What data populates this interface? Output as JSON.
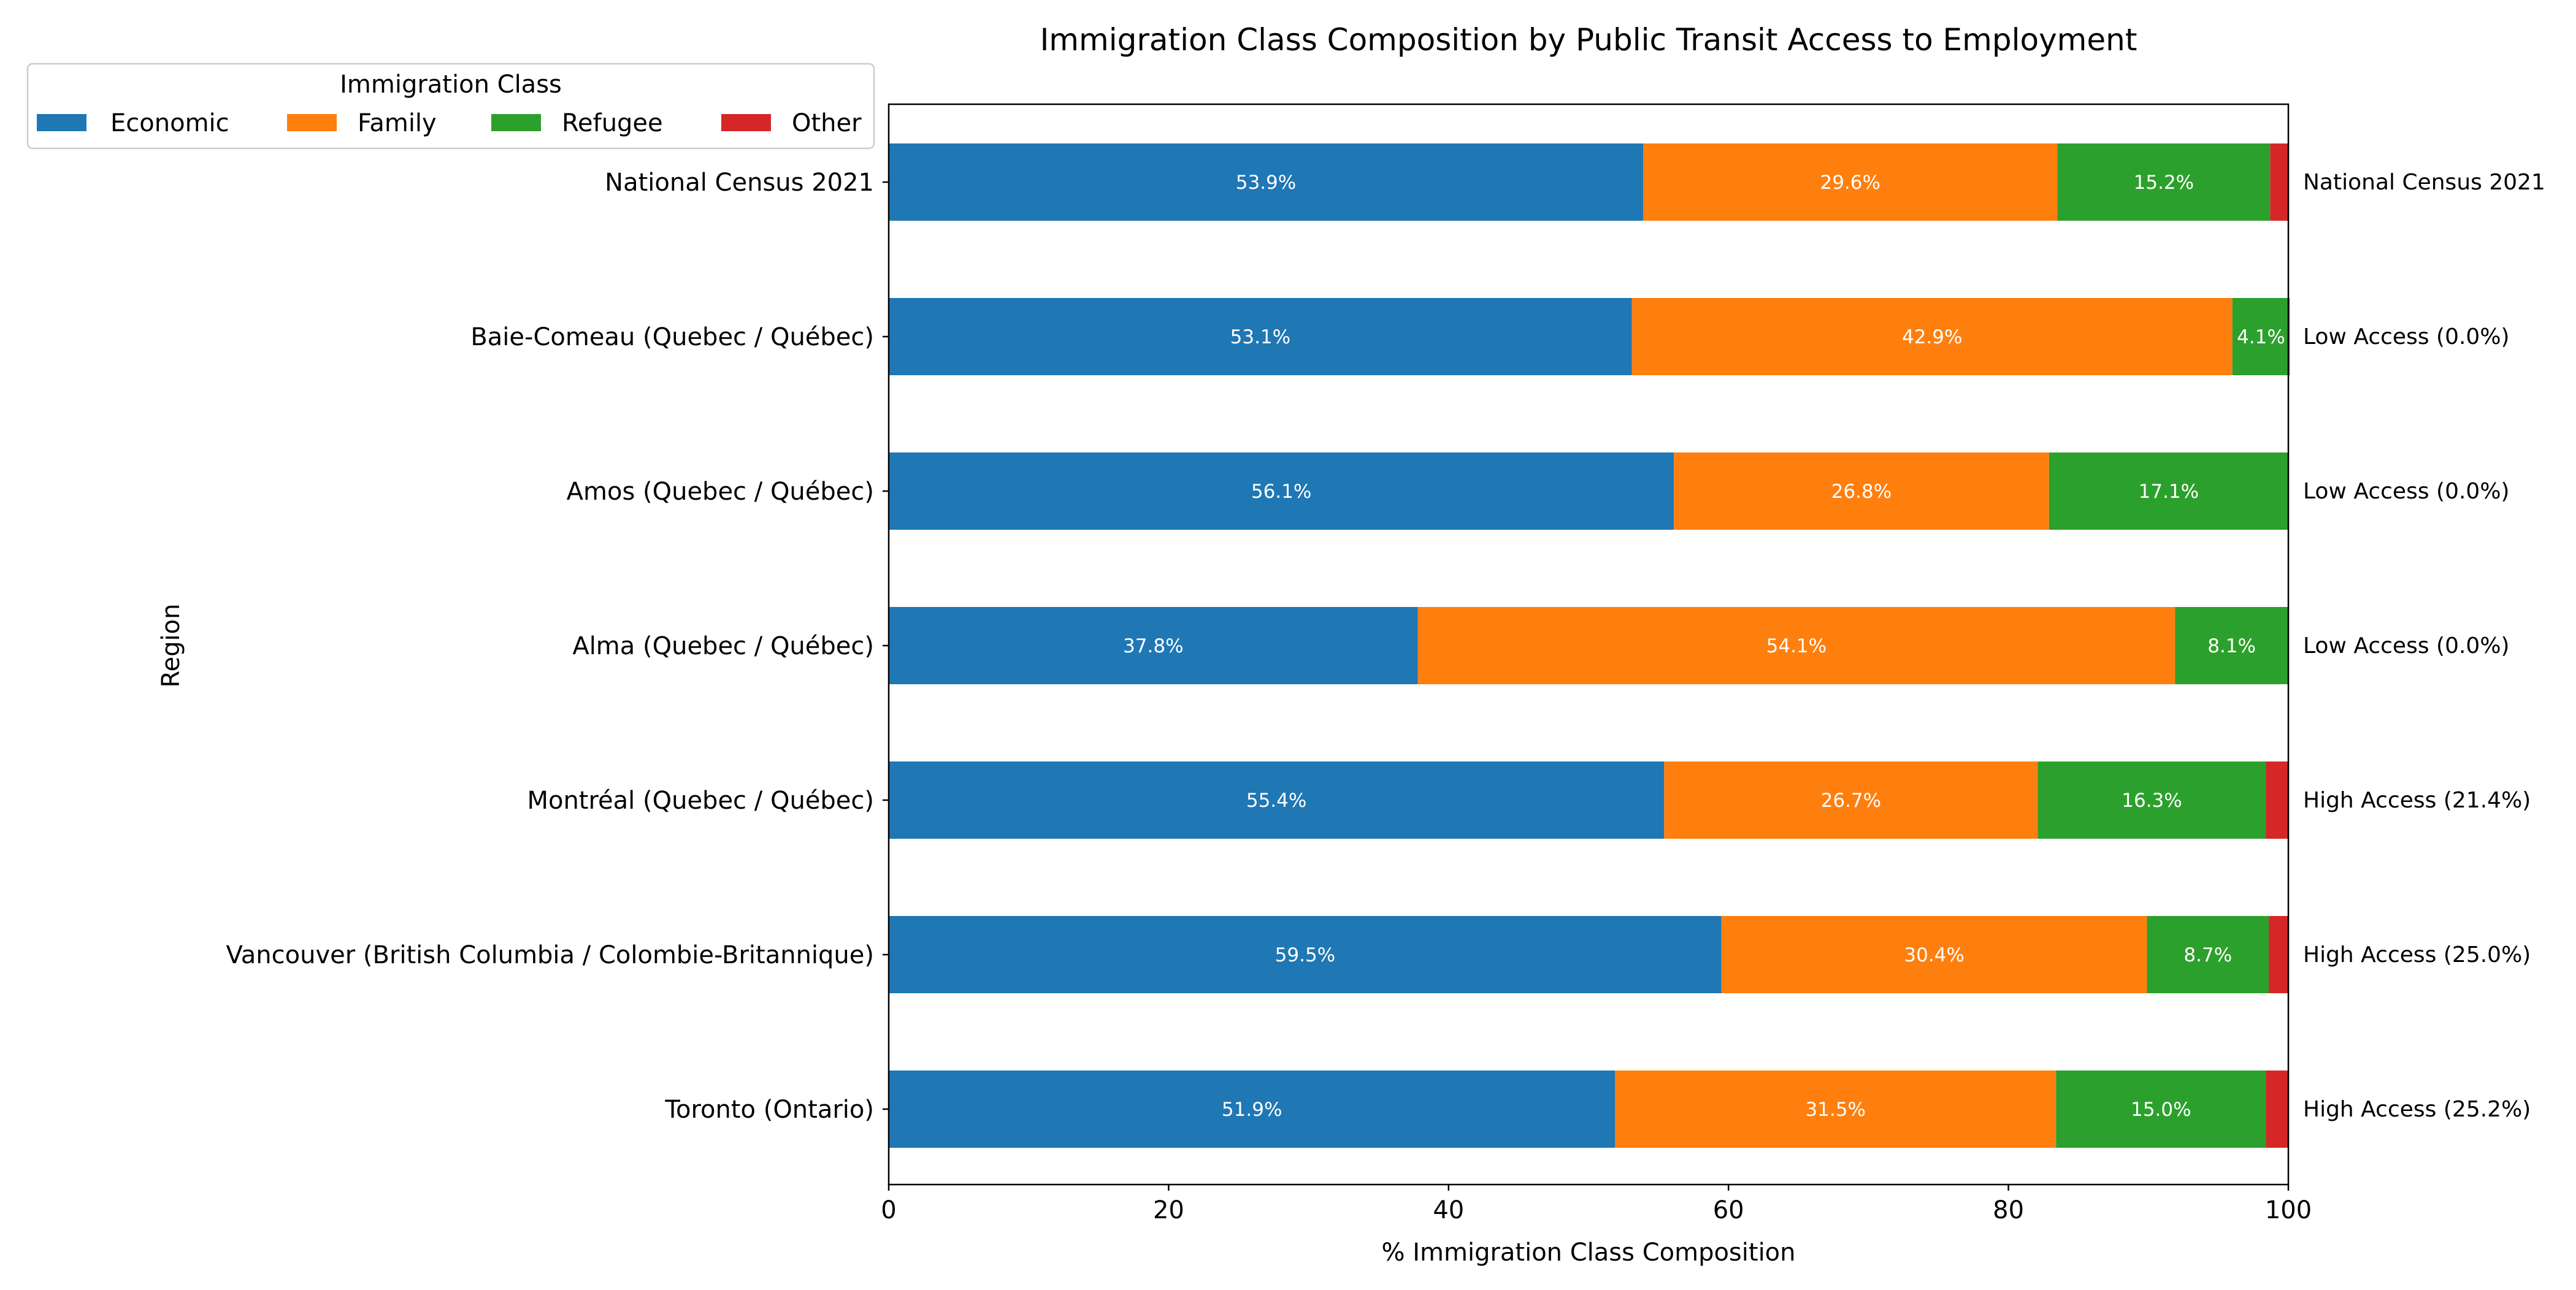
{
  "chart_data": {
    "type": "bar",
    "orientation": "horizontal",
    "stacked": true,
    "title": "Immigration Class Composition by Public Transit Access to Employment",
    "xlabel": "% Immigration Class Composition",
    "ylabel": "Region",
    "xlim": [
      0,
      100
    ],
    "xticks": [
      "0",
      "20",
      "40",
      "60",
      "80",
      "100"
    ],
    "grid": false,
    "legend": {
      "title": "Immigration Class",
      "placement": "top-left"
    },
    "categories": [
      "National Census 2021",
      "Baie-Comeau (Quebec / Québec)",
      "Amos (Quebec / Québec)",
      "Alma (Quebec / Québec)",
      "Montréal (Quebec / Québec)",
      "Vancouver (British Columbia / Colombie-Britannique)",
      "Toronto (Ontario)"
    ],
    "right_labels": [
      "National Census 2021",
      "Low Access (0.0%)",
      "Low Access (0.0%)",
      "Low Access (0.0%)",
      "High Access (21.4%)",
      "High Access (25.0%)",
      "High Access (25.2%)"
    ],
    "series": [
      {
        "name": "Economic",
        "color": "#1f77b4",
        "values": [
          53.9,
          53.1,
          56.1,
          37.8,
          55.4,
          59.5,
          51.9
        ],
        "labels": [
          "53.9%",
          "53.1%",
          "56.1%",
          "37.8%",
          "55.4%",
          "59.5%",
          "51.9%"
        ]
      },
      {
        "name": "Family",
        "color": "#ff7f0e",
        "values": [
          29.6,
          42.9,
          26.8,
          54.1,
          26.7,
          30.4,
          31.5
        ],
        "labels": [
          "29.6%",
          "42.9%",
          "26.8%",
          "54.1%",
          "26.7%",
          "30.4%",
          "31.5%"
        ]
      },
      {
        "name": "Refugee",
        "color": "#2ca02c",
        "values": [
          15.2,
          4.1,
          17.1,
          8.1,
          16.3,
          8.7,
          15.0
        ],
        "labels": [
          "15.2%",
          "4.1%",
          "17.1%",
          "8.1%",
          "16.3%",
          "8.7%",
          "15.0%"
        ]
      },
      {
        "name": "Other",
        "color": "#d62728",
        "values": [
          1.3,
          0,
          0,
          0,
          1.6,
          1.4,
          1.6
        ],
        "labels": [
          "",
          "",
          "",
          "",
          "",
          "",
          ""
        ]
      }
    ]
  }
}
